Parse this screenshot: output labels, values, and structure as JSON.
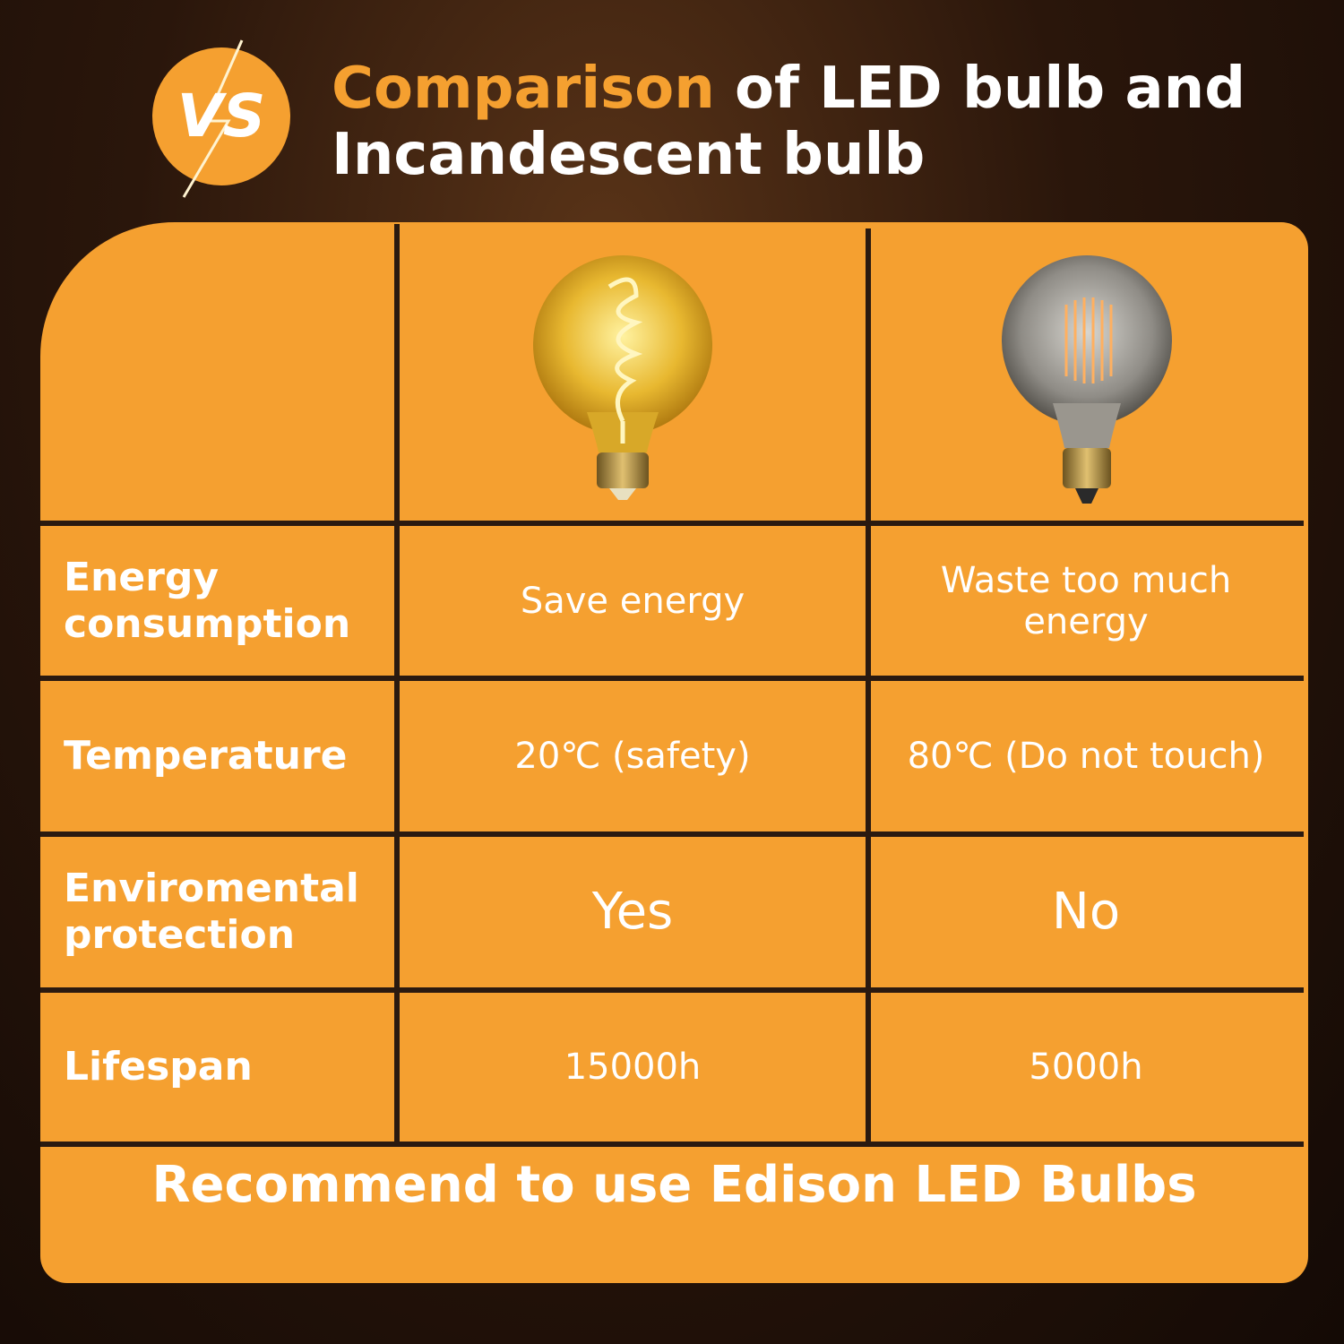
{
  "header": {
    "badge": "VS",
    "title_highlight": "Comparison",
    "title_line1": "of LED bulb and",
    "title_line2": "Incandescent bulb"
  },
  "table": {
    "rows": [
      {
        "label": "Energy consumption",
        "led": "Save energy",
        "incandescent": "Waste too much energy"
      },
      {
        "label": "Temperature",
        "led": "20℃ (safety)",
        "incandescent": "80℃ (Do not touch)"
      },
      {
        "label": "Enviromental protection",
        "led": "Yes",
        "incandescent": "No"
      },
      {
        "label": "Lifespan",
        "led": "15000h",
        "incandescent": "5000h"
      }
    ]
  },
  "footer": {
    "text": "Recommend to use Edison LED Bulbs"
  }
}
